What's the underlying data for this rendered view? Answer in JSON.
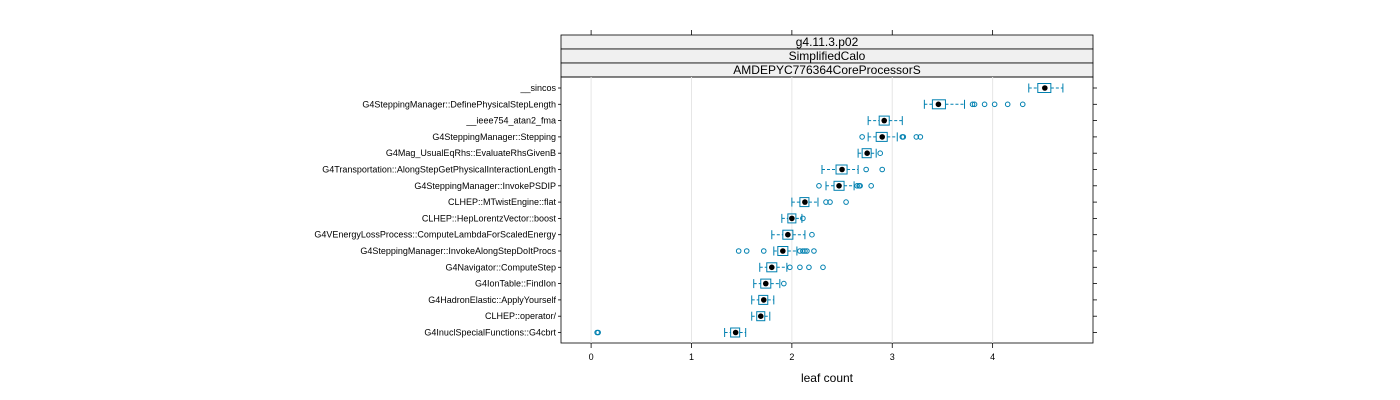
{
  "chart_data": {
    "type": "boxplot",
    "strips": [
      "g4.11.3.p02",
      "SimplifiedCalo",
      "AMDEPYC776364CoreProcessorS"
    ],
    "xlabel": "leaf count",
    "xlim": [
      -0.3,
      5.0
    ],
    "xticks": [
      0,
      1,
      2,
      3,
      4
    ],
    "tick_labels": [
      "0",
      "1",
      "2",
      "3",
      "4"
    ],
    "grid": true,
    "colors": {
      "box": "#0080b0",
      "median": "#000000",
      "strip_bg": "#f0f0f0",
      "grid": "#e6e6e6",
      "border": "#000000"
    },
    "categories": [
      {
        "label": "__sincos",
        "whisker_low": 4.36,
        "q1": 4.45,
        "median": 4.52,
        "q3": 4.58,
        "whisker_high": 4.7,
        "outliers": []
      },
      {
        "label": "G4SteppingManager::DefinePhysicalStepLength",
        "whisker_low": 3.32,
        "q1": 3.4,
        "median": 3.46,
        "q3": 3.53,
        "whisker_high": 3.72,
        "outliers": [
          3.8,
          3.82,
          3.92,
          4.02,
          4.15,
          4.3
        ]
      },
      {
        "label": "__ieee754_atan2_fma",
        "whisker_low": 2.76,
        "q1": 2.87,
        "median": 2.92,
        "q3": 2.97,
        "whisker_high": 3.1,
        "outliers": []
      },
      {
        "label": "G4SteppingManager::Stepping",
        "whisker_low": 2.76,
        "q1": 2.84,
        "median": 2.9,
        "q3": 2.95,
        "whisker_high": 3.05,
        "outliers": [
          2.7,
          3.1,
          3.11,
          3.24,
          3.28
        ]
      },
      {
        "label": "G4Mag_UsualEqRhs::EvaluateRhsGivenB",
        "whisker_low": 2.66,
        "q1": 2.7,
        "median": 2.75,
        "q3": 2.79,
        "whisker_high": 2.84,
        "outliers": [
          2.88
        ]
      },
      {
        "label": "G4Transportation::AlongStepGetPhysicalInteractionLength",
        "whisker_low": 2.3,
        "q1": 2.44,
        "median": 2.5,
        "q3": 2.55,
        "whisker_high": 2.66,
        "outliers": [
          2.74,
          2.9
        ]
      },
      {
        "label": "G4SteppingManager::InvokePSDIP",
        "whisker_low": 2.34,
        "q1": 2.42,
        "median": 2.47,
        "q3": 2.52,
        "whisker_high": 2.62,
        "outliers": [
          2.27,
          2.65,
          2.67,
          2.68,
          2.79
        ]
      },
      {
        "label": "CLHEP::MTwistEngine::flat",
        "whisker_low": 2.0,
        "q1": 2.08,
        "median": 2.13,
        "q3": 2.17,
        "whisker_high": 2.26,
        "outliers": [
          2.34,
          2.38,
          2.54
        ]
      },
      {
        "label": "CLHEP::HepLorentzVector::boost",
        "whisker_low": 1.9,
        "q1": 1.96,
        "median": 2.0,
        "q3": 2.04,
        "whisker_high": 2.1,
        "outliers": [
          2.11
        ]
      },
      {
        "label": "G4VEnergyLossProcess::ComputeLambdaForScaledEnergy",
        "whisker_low": 1.8,
        "q1": 1.91,
        "median": 1.96,
        "q3": 2.01,
        "whisker_high": 2.13,
        "outliers": [
          2.2
        ]
      },
      {
        "label": "G4SteppingManager::InvokeAlongStepDoItProcs",
        "whisker_low": 1.82,
        "q1": 1.86,
        "median": 1.91,
        "q3": 1.96,
        "whisker_high": 2.05,
        "outliers": [
          1.47,
          1.55,
          1.72,
          2.08,
          2.11,
          2.13,
          2.15,
          2.22
        ]
      },
      {
        "label": "G4Navigator::ComputeStep",
        "whisker_low": 1.68,
        "q1": 1.75,
        "median": 1.8,
        "q3": 1.85,
        "whisker_high": 1.95,
        "outliers": [
          1.98,
          2.08,
          2.17,
          2.31
        ]
      },
      {
        "label": "G4IonTable::FindIon",
        "whisker_low": 1.62,
        "q1": 1.69,
        "median": 1.74,
        "q3": 1.79,
        "whisker_high": 1.88,
        "outliers": [
          1.92
        ]
      },
      {
        "label": "G4HadronElastic::ApplyYourself",
        "whisker_low": 1.6,
        "q1": 1.67,
        "median": 1.72,
        "q3": 1.76,
        "whisker_high": 1.82,
        "outliers": []
      },
      {
        "label": "CLHEP::operator/",
        "whisker_low": 1.6,
        "q1": 1.65,
        "median": 1.69,
        "q3": 1.73,
        "whisker_high": 1.78,
        "outliers": []
      },
      {
        "label": "G4InuclSpecialFunctions::G4cbrt",
        "whisker_low": 1.33,
        "q1": 1.39,
        "median": 1.44,
        "q3": 1.48,
        "whisker_high": 1.54,
        "outliers": [
          0.06,
          0.07
        ]
      }
    ]
  }
}
